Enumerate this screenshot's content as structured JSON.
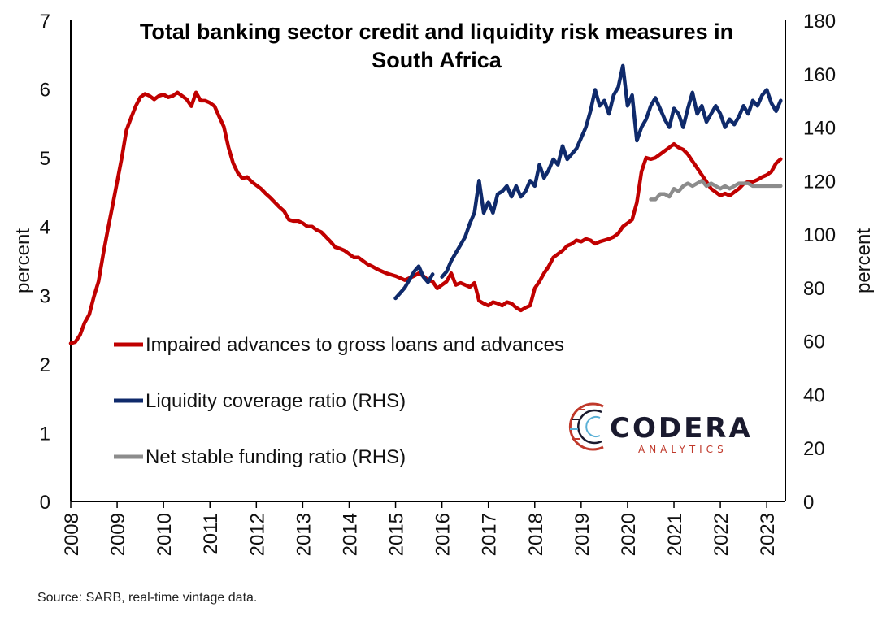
{
  "chart_data": {
    "type": "line",
    "title_lines": [
      "Total banking sector credit and liquidity risk measures in",
      "South Africa"
    ],
    "source": "Source: SARB, real-time vintage data.",
    "left_axis": {
      "label": "percent",
      "ylim": [
        0,
        7
      ],
      "ticks": [
        "0",
        "1",
        "2",
        "3",
        "4",
        "5",
        "6",
        "7"
      ]
    },
    "right_axis": {
      "label": "percent",
      "ylim": [
        0,
        180
      ],
      "ticks": [
        "0",
        "20",
        "40",
        "60",
        "80",
        "100",
        "120",
        "140",
        "160",
        "180"
      ]
    },
    "x_axis": {
      "xlim": [
        2008,
        2023.4
      ],
      "ticks": [
        "2008",
        "2009",
        "2010",
        "2011",
        "2012",
        "2013",
        "2014",
        "2015",
        "2016",
        "2017",
        "2018",
        "2019",
        "2020",
        "2021",
        "2022",
        "2023"
      ]
    },
    "legend": {
      "placement": "lower-left"
    },
    "logo": {
      "main": "CODERA",
      "sub": "ANALYTICS"
    },
    "series": [
      {
        "name": "Impaired advances to gross loans and advances",
        "axis": "left",
        "color": "#c00000",
        "points": [
          [
            2008.0,
            2.3
          ],
          [
            2008.1,
            2.32
          ],
          [
            2008.2,
            2.42
          ],
          [
            2008.3,
            2.6
          ],
          [
            2008.4,
            2.72
          ],
          [
            2008.5,
            2.98
          ],
          [
            2008.6,
            3.2
          ],
          [
            2008.7,
            3.6
          ],
          [
            2008.8,
            3.96
          ],
          [
            2008.9,
            4.3
          ],
          [
            2009.0,
            4.65
          ],
          [
            2009.1,
            5.0
          ],
          [
            2009.2,
            5.4
          ],
          [
            2009.3,
            5.58
          ],
          [
            2009.4,
            5.75
          ],
          [
            2009.5,
            5.88
          ],
          [
            2009.6,
            5.93
          ],
          [
            2009.7,
            5.9
          ],
          [
            2009.8,
            5.85
          ],
          [
            2009.9,
            5.9
          ],
          [
            2010.0,
            5.92
          ],
          [
            2010.1,
            5.88
          ],
          [
            2010.2,
            5.9
          ],
          [
            2010.3,
            5.95
          ],
          [
            2010.4,
            5.9
          ],
          [
            2010.5,
            5.85
          ],
          [
            2010.6,
            5.75
          ],
          [
            2010.7,
            5.95
          ],
          [
            2010.8,
            5.83
          ],
          [
            2010.9,
            5.83
          ],
          [
            2011.0,
            5.8
          ],
          [
            2011.1,
            5.75
          ],
          [
            2011.2,
            5.6
          ],
          [
            2011.3,
            5.45
          ],
          [
            2011.4,
            5.15
          ],
          [
            2011.5,
            4.92
          ],
          [
            2011.6,
            4.78
          ],
          [
            2011.7,
            4.7
          ],
          [
            2011.8,
            4.72
          ],
          [
            2011.9,
            4.65
          ],
          [
            2012.0,
            4.6
          ],
          [
            2012.1,
            4.55
          ],
          [
            2012.2,
            4.48
          ],
          [
            2012.3,
            4.42
          ],
          [
            2012.4,
            4.35
          ],
          [
            2012.5,
            4.28
          ],
          [
            2012.6,
            4.22
          ],
          [
            2012.7,
            4.1
          ],
          [
            2012.8,
            4.08
          ],
          [
            2012.9,
            4.08
          ],
          [
            2013.0,
            4.05
          ],
          [
            2013.1,
            4.0
          ],
          [
            2013.2,
            4.0
          ],
          [
            2013.3,
            3.95
          ],
          [
            2013.4,
            3.92
          ],
          [
            2013.5,
            3.85
          ],
          [
            2013.6,
            3.78
          ],
          [
            2013.7,
            3.7
          ],
          [
            2013.8,
            3.68
          ],
          [
            2013.9,
            3.65
          ],
          [
            2014.0,
            3.6
          ],
          [
            2014.1,
            3.55
          ],
          [
            2014.2,
            3.55
          ],
          [
            2014.3,
            3.5
          ],
          [
            2014.4,
            3.45
          ],
          [
            2014.5,
            3.42
          ],
          [
            2014.6,
            3.38
          ],
          [
            2014.7,
            3.35
          ],
          [
            2014.8,
            3.32
          ],
          [
            2014.9,
            3.3
          ],
          [
            2015.0,
            3.28
          ],
          [
            2015.1,
            3.25
          ],
          [
            2015.2,
            3.22
          ],
          [
            2015.3,
            3.25
          ],
          [
            2015.4,
            3.28
          ],
          [
            2015.5,
            3.32
          ],
          [
            2015.6,
            3.28
          ],
          [
            2015.7,
            3.22
          ],
          [
            2015.8,
            3.2
          ],
          [
            2015.9,
            3.1
          ],
          [
            2016.0,
            3.15
          ],
          [
            2016.1,
            3.2
          ],
          [
            2016.2,
            3.32
          ],
          [
            2016.3,
            3.15
          ],
          [
            2016.4,
            3.18
          ],
          [
            2016.5,
            3.15
          ],
          [
            2016.6,
            3.12
          ],
          [
            2016.7,
            3.18
          ],
          [
            2016.8,
            2.92
          ],
          [
            2016.9,
            2.88
          ],
          [
            2017.0,
            2.85
          ],
          [
            2017.1,
            2.9
          ],
          [
            2017.2,
            2.88
          ],
          [
            2017.3,
            2.85
          ],
          [
            2017.4,
            2.9
          ],
          [
            2017.5,
            2.88
          ],
          [
            2017.6,
            2.82
          ],
          [
            2017.7,
            2.78
          ],
          [
            2017.8,
            2.82
          ],
          [
            2017.9,
            2.85
          ],
          [
            2018.0,
            3.1
          ],
          [
            2018.1,
            3.2
          ],
          [
            2018.2,
            3.32
          ],
          [
            2018.3,
            3.42
          ],
          [
            2018.4,
            3.55
          ],
          [
            2018.5,
            3.6
          ],
          [
            2018.6,
            3.65
          ],
          [
            2018.7,
            3.72
          ],
          [
            2018.8,
            3.75
          ],
          [
            2018.9,
            3.8
          ],
          [
            2019.0,
            3.78
          ],
          [
            2019.1,
            3.82
          ],
          [
            2019.2,
            3.8
          ],
          [
            2019.3,
            3.75
          ],
          [
            2019.4,
            3.78
          ],
          [
            2019.5,
            3.8
          ],
          [
            2019.6,
            3.82
          ],
          [
            2019.7,
            3.85
          ],
          [
            2019.8,
            3.9
          ],
          [
            2019.9,
            4.0
          ],
          [
            2020.0,
            4.05
          ],
          [
            2020.1,
            4.1
          ],
          [
            2020.2,
            4.35
          ],
          [
            2020.3,
            4.8
          ],
          [
            2020.4,
            5.0
          ],
          [
            2020.5,
            4.98
          ],
          [
            2020.6,
            5.0
          ],
          [
            2020.7,
            5.05
          ],
          [
            2020.8,
            5.1
          ],
          [
            2020.9,
            5.15
          ],
          [
            2021.0,
            5.2
          ],
          [
            2021.1,
            5.15
          ],
          [
            2021.2,
            5.12
          ],
          [
            2021.3,
            5.05
          ],
          [
            2021.4,
            4.95
          ],
          [
            2021.5,
            4.85
          ],
          [
            2021.6,
            4.75
          ],
          [
            2021.7,
            4.65
          ],
          [
            2021.8,
            4.55
          ],
          [
            2021.9,
            4.5
          ],
          [
            2022.0,
            4.45
          ],
          [
            2022.1,
            4.48
          ],
          [
            2022.2,
            4.45
          ],
          [
            2022.3,
            4.5
          ],
          [
            2022.4,
            4.55
          ],
          [
            2022.5,
            4.62
          ],
          [
            2022.6,
            4.65
          ],
          [
            2022.7,
            4.65
          ],
          [
            2022.8,
            4.68
          ],
          [
            2022.9,
            4.72
          ],
          [
            2023.0,
            4.75
          ],
          [
            2023.1,
            4.8
          ],
          [
            2023.2,
            4.92
          ],
          [
            2023.3,
            4.98
          ]
        ]
      },
      {
        "name": "Liquidity coverage ratio (RHS)",
        "axis": "right",
        "color": "#0f2a6b",
        "segments": [
          [
            [
              2015.0,
              76
            ],
            [
              2015.1,
              78
            ],
            [
              2015.2,
              80
            ],
            [
              2015.3,
              83
            ],
            [
              2015.4,
              86
            ],
            [
              2015.5,
              88
            ],
            [
              2015.6,
              84
            ],
            [
              2015.7,
              82
            ],
            [
              2015.8,
              85
            ]
          ],
          [
            [
              2016.0,
              84
            ],
            [
              2016.1,
              86
            ],
            [
              2016.2,
              90
            ],
            [
              2016.3,
              93
            ],
            [
              2016.4,
              96
            ],
            [
              2016.5,
              99
            ],
            [
              2016.6,
              104
            ],
            [
              2016.7,
              108
            ],
            [
              2016.8,
              120
            ],
            [
              2016.9,
              108
            ],
            [
              2017.0,
              112
            ],
            [
              2017.1,
              108
            ],
            [
              2017.2,
              115
            ],
            [
              2017.3,
              116
            ],
            [
              2017.4,
              118
            ],
            [
              2017.5,
              114
            ],
            [
              2017.6,
              118
            ],
            [
              2017.7,
              114
            ],
            [
              2017.8,
              116
            ],
            [
              2017.9,
              120
            ],
            [
              2018.0,
              118
            ],
            [
              2018.1,
              126
            ],
            [
              2018.2,
              121
            ],
            [
              2018.3,
              124
            ],
            [
              2018.4,
              128
            ],
            [
              2018.5,
              126
            ],
            [
              2018.6,
              133
            ],
            [
              2018.7,
              128
            ],
            [
              2018.8,
              130
            ],
            [
              2018.9,
              132
            ],
            [
              2019.0,
              136
            ],
            [
              2019.1,
              140
            ],
            [
              2019.2,
              146
            ],
            [
              2019.3,
              154
            ],
            [
              2019.4,
              148
            ],
            [
              2019.5,
              150
            ],
            [
              2019.6,
              145
            ],
            [
              2019.7,
              152
            ],
            [
              2019.8,
              155
            ],
            [
              2019.9,
              163
            ],
            [
              2020.0,
              148
            ],
            [
              2020.1,
              152
            ],
            [
              2020.2,
              135
            ],
            [
              2020.3,
              140
            ],
            [
              2020.4,
              143
            ],
            [
              2020.5,
              148
            ],
            [
              2020.6,
              151
            ],
            [
              2020.7,
              147
            ],
            [
              2020.8,
              143
            ],
            [
              2020.9,
              140
            ],
            [
              2021.0,
              147
            ],
            [
              2021.1,
              145
            ],
            [
              2021.2,
              140
            ],
            [
              2021.3,
              147
            ],
            [
              2021.4,
              153
            ],
            [
              2021.5,
              145
            ],
            [
              2021.6,
              148
            ],
            [
              2021.7,
              142
            ],
            [
              2021.8,
              145
            ],
            [
              2021.9,
              148
            ],
            [
              2022.0,
              145
            ],
            [
              2022.1,
              140
            ],
            [
              2022.2,
              143
            ],
            [
              2022.3,
              141
            ],
            [
              2022.4,
              144
            ],
            [
              2022.5,
              148
            ],
            [
              2022.6,
              145
            ],
            [
              2022.7,
              150
            ],
            [
              2022.8,
              148
            ],
            [
              2022.9,
              152
            ],
            [
              2023.0,
              154
            ],
            [
              2023.1,
              149
            ],
            [
              2023.2,
              146
            ],
            [
              2023.3,
              150
            ]
          ]
        ]
      },
      {
        "name": "Net stable funding ratio (RHS)",
        "axis": "right",
        "color": "#8c8c8c",
        "segments": [
          [
            [
              2020.5,
              113
            ],
            [
              2020.6,
              113
            ],
            [
              2020.7,
              115
            ],
            [
              2020.8,
              115
            ],
            [
              2020.9,
              114
            ],
            [
              2021.0,
              117
            ],
            [
              2021.1,
              116
            ],
            [
              2021.2,
              118
            ],
            [
              2021.3,
              119
            ],
            [
              2021.4,
              118
            ],
            [
              2021.5,
              119
            ],
            [
              2021.6,
              120
            ],
            [
              2021.7,
              118
            ],
            [
              2021.8,
              119
            ],
            [
              2021.9,
              118
            ],
            [
              2022.0,
              117
            ],
            [
              2022.1,
              118
            ],
            [
              2022.2,
              117
            ],
            [
              2022.3,
              118
            ],
            [
              2022.4,
              119
            ],
            [
              2022.5,
              119
            ],
            [
              2022.6,
              119
            ],
            [
              2022.7,
              118
            ],
            [
              2022.8,
              118
            ],
            [
              2022.9,
              118
            ],
            [
              2023.0,
              118
            ],
            [
              2023.1,
              118
            ],
            [
              2023.2,
              118
            ],
            [
              2023.3,
              118
            ]
          ]
        ]
      }
    ]
  }
}
